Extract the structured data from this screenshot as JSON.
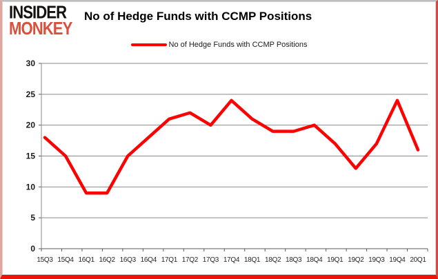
{
  "logo": {
    "line1": "INSIDER",
    "line2": "MONKEY"
  },
  "header": {
    "title": "No of Hedge Funds with CCMP Positions"
  },
  "legend": {
    "label": "No of Hedge Funds with CCMP Positions"
  },
  "colors": {
    "line": "#ff0000",
    "grid": "#8a8a8a",
    "axis": "#595959",
    "logo_accent": "#d9503c",
    "frame_bottom": "#ed1309"
  },
  "chart_data": {
    "type": "line",
    "title": "No of Hedge Funds with CCMP Positions",
    "categories": [
      "15Q3",
      "15Q4",
      "16Q1",
      "16Q2",
      "16Q3",
      "16Q4",
      "17Q1",
      "17Q2",
      "17Q3",
      "17Q4",
      "18Q1",
      "18Q2",
      "18Q3",
      "18Q4",
      "19Q1",
      "19Q2",
      "19Q3",
      "19Q4",
      "20Q1"
    ],
    "series": [
      {
        "name": "No of Hedge Funds with CCMP Positions",
        "values": [
          18,
          15,
          9,
          9,
          15,
          18,
          21,
          22,
          20,
          24,
          21,
          19,
          19,
          20,
          17,
          13,
          17,
          24,
          16
        ]
      }
    ],
    "xlabel": "",
    "ylabel": "",
    "ylim": [
      0,
      30
    ],
    "ytick_step": 5,
    "grid": true,
    "legend_position": "top-center"
  }
}
